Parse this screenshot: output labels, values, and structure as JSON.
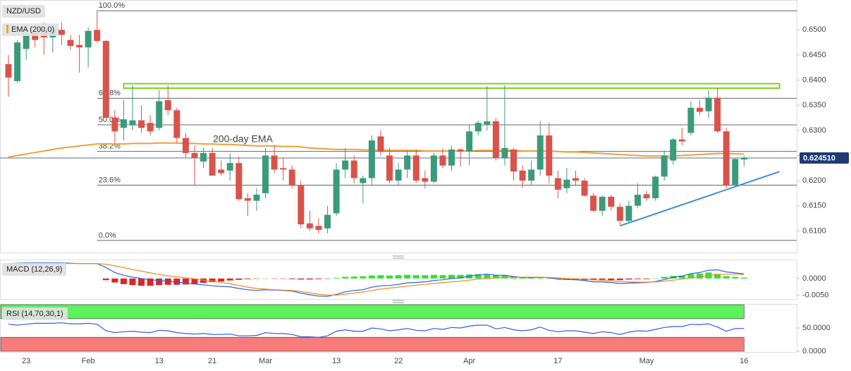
{
  "chart_data": [
    {
      "type": "candlestick",
      "title": "NZD/USD",
      "categories": [
        null,
        null,
        "23",
        null,
        null,
        null,
        null,
        null,
        null,
        "Feb",
        null,
        null,
        null,
        null,
        null,
        null,
        null,
        "13",
        null,
        null,
        null,
        null,
        null,
        "21",
        null,
        null,
        null,
        null,
        null,
        "Mar",
        null,
        null,
        null,
        null,
        null,
        null,
        null,
        "13",
        null,
        null,
        null,
        null,
        null,
        null,
        "22",
        null,
        null,
        null,
        null,
        null,
        null,
        null,
        "Apr",
        null,
        null,
        null,
        null,
        null,
        null,
        null,
        null,
        null,
        "17",
        null,
        null,
        null,
        null,
        null,
        null,
        null,
        null,
        null,
        "May",
        null,
        null,
        null,
        null,
        null,
        null,
        null,
        null,
        null,
        null,
        "16"
      ],
      "open": [
        0.6432,
        0.6398,
        0.6462,
        0.6495,
        0.6495,
        0.6485,
        0.65,
        0.648,
        0.647,
        0.6465,
        0.65,
        0.6478,
        0.6325,
        0.6305,
        0.631,
        0.632,
        0.6315,
        0.6305,
        0.636,
        0.634,
        0.6285,
        0.6255,
        0.6238,
        0.6255,
        0.6222,
        0.622,
        0.6235,
        0.6165,
        0.616,
        0.6175,
        0.625,
        0.6225,
        0.6222,
        0.619,
        0.6115,
        0.611,
        0.6105,
        0.6135,
        0.6222,
        0.624,
        0.6195,
        0.6205,
        0.6288,
        0.625,
        0.62,
        0.6222,
        0.625,
        0.6205,
        0.6198,
        0.625,
        0.623,
        0.6262,
        0.6258,
        0.6298,
        0.6312,
        0.6318,
        0.6245,
        0.6262,
        0.622,
        0.62,
        0.6222,
        0.629,
        0.6205,
        0.6185,
        0.6205,
        0.62,
        0.617,
        0.614,
        0.6168,
        0.6148,
        0.612,
        0.615,
        0.6173,
        0.6165,
        0.6208,
        0.624,
        0.6282,
        0.6295,
        0.6345,
        0.6338,
        0.6365,
        0.6298,
        0.6192,
        0.6242
      ],
      "high": [
        0.645,
        0.648,
        0.651,
        0.6505,
        0.6515,
        0.6505,
        0.6515,
        0.649,
        0.649,
        0.6505,
        0.6538,
        0.648,
        0.634,
        0.636,
        0.639,
        0.635,
        0.633,
        0.638,
        0.639,
        0.6345,
        0.6295,
        0.627,
        0.6265,
        0.6265,
        0.624,
        0.6255,
        0.6248,
        0.6175,
        0.6185,
        0.6265,
        0.627,
        0.6245,
        0.623,
        0.62,
        0.614,
        0.6125,
        0.615,
        0.6235,
        0.6265,
        0.625,
        0.621,
        0.629,
        0.63,
        0.6265,
        0.6235,
        0.626,
        0.6262,
        0.622,
        0.6255,
        0.6265,
        0.627,
        0.6265,
        0.631,
        0.632,
        0.6388,
        0.6325,
        0.639,
        0.6265,
        0.623,
        0.624,
        0.6318,
        0.6315,
        0.622,
        0.6225,
        0.622,
        0.6205,
        0.6175,
        0.617,
        0.6172,
        0.6155,
        0.616,
        0.6195,
        0.618,
        0.621,
        0.626,
        0.6285,
        0.6305,
        0.6358,
        0.636,
        0.638,
        0.6385,
        0.6305,
        0.6245,
        0.625
      ],
      "low": [
        0.6367,
        0.6395,
        0.644,
        0.6465,
        0.645,
        0.6455,
        0.647,
        0.646,
        0.6415,
        0.6425,
        0.6475,
        0.6325,
        0.6275,
        0.628,
        0.63,
        0.6295,
        0.629,
        0.63,
        0.633,
        0.6275,
        0.6245,
        0.619,
        0.6225,
        0.621,
        0.621,
        0.62,
        0.616,
        0.613,
        0.614,
        0.6165,
        0.6215,
        0.62,
        0.6185,
        0.6105,
        0.61,
        0.6095,
        0.6095,
        0.613,
        0.6205,
        0.6195,
        0.6155,
        0.619,
        0.625,
        0.6195,
        0.619,
        0.6205,
        0.6195,
        0.6185,
        0.6195,
        0.6225,
        0.622,
        0.6228,
        0.623,
        0.629,
        0.63,
        0.624,
        0.623,
        0.62,
        0.6185,
        0.619,
        0.621,
        0.6195,
        0.6165,
        0.6175,
        0.619,
        0.6168,
        0.6138,
        0.613,
        0.614,
        0.6112,
        0.6115,
        0.6145,
        0.616,
        0.616,
        0.62,
        0.6232,
        0.627,
        0.629,
        0.633,
        0.6325,
        0.6295,
        0.6185,
        0.6188,
        0.6228
      ],
      "close": [
        0.6405,
        0.6475,
        0.649,
        0.648,
        0.6485,
        0.65,
        0.649,
        0.6468,
        0.6465,
        0.6498,
        0.6478,
        0.6325,
        0.6298,
        0.6322,
        0.632,
        0.6305,
        0.6298,
        0.6358,
        0.634,
        0.6285,
        0.6255,
        0.6245,
        0.6255,
        0.621,
        0.6215,
        0.6235,
        0.6163,
        0.616,
        0.6172,
        0.625,
        0.6222,
        0.6222,
        0.619,
        0.6113,
        0.6105,
        0.6102,
        0.6132,
        0.6222,
        0.624,
        0.6205,
        0.6205,
        0.628,
        0.6258,
        0.62,
        0.6222,
        0.625,
        0.62,
        0.6198,
        0.625,
        0.623,
        0.6262,
        0.6258,
        0.6298,
        0.6315,
        0.6318,
        0.6245,
        0.6265,
        0.6218,
        0.62,
        0.6222,
        0.629,
        0.621,
        0.6182,
        0.6202,
        0.62,
        0.617,
        0.614,
        0.6168,
        0.6148,
        0.612,
        0.615,
        0.6172,
        0.6165,
        0.6208,
        0.625,
        0.6282,
        0.6278,
        0.6345,
        0.6337,
        0.6365,
        0.6298,
        0.619,
        0.6243,
        0.6245
      ],
      "up_color": "#3a9b7c",
      "down_color": "#d9534a",
      "ema": {
        "name": "EMA (200,0)",
        "color": "#eea03a",
        "values": [
          0.6247,
          0.625,
          0.6253,
          0.6256,
          0.6259,
          0.6262,
          0.6265,
          0.6267,
          0.6269,
          0.6271,
          0.6273,
          0.6273,
          0.6273,
          0.6273,
          0.6274,
          0.6274,
          0.6274,
          0.6275,
          0.6275,
          0.6275,
          0.6274,
          0.6274,
          0.6273,
          0.6273,
          0.6272,
          0.6272,
          0.6271,
          0.627,
          0.6269,
          0.6269,
          0.6269,
          0.6268,
          0.6268,
          0.6267,
          0.6265,
          0.6264,
          0.6263,
          0.6262,
          0.6262,
          0.6262,
          0.6261,
          0.6261,
          0.6261,
          0.626,
          0.626,
          0.626,
          0.626,
          0.6259,
          0.6259,
          0.6259,
          0.6259,
          0.6259,
          0.6259,
          0.626,
          0.626,
          0.626,
          0.626,
          0.626,
          0.6259,
          0.6259,
          0.6259,
          0.6259,
          0.6258,
          0.6257,
          0.6257,
          0.6256,
          0.6255,
          0.6254,
          0.6253,
          0.6252,
          0.6251,
          0.625,
          0.6249,
          0.6249,
          0.6249,
          0.6249,
          0.625,
          0.6251,
          0.6252,
          0.6253,
          0.6254,
          0.6254,
          0.6253,
          0.6253
        ]
      },
      "annotation": "200-day EMA",
      "fib_start": 10,
      "fib_levels": [
        {
          "label": "100.0%",
          "value": 0.6538
        },
        {
          "label": "61.8%",
          "value": 0.6364
        },
        {
          "label": "50.0%",
          "value": 0.6311
        },
        {
          "label": "38.2%",
          "value": 0.6258
        },
        {
          "label": "23.6%",
          "value": 0.6191
        },
        {
          "label": "0.0%",
          "value": 0.6081
        }
      ],
      "resistance_zone": {
        "x": [
          13,
          87
        ],
        "y": [
          0.6384,
          0.6393
        ],
        "color": "#7ed321"
      },
      "trendline": {
        "x": [
          69,
          87
        ],
        "y": [
          0.611,
          0.6218
        ],
        "color": "#3a8fdc"
      },
      "last_price": {
        "value": 0.62451,
        "label": "0.624510",
        "color": "#1f3b73"
      },
      "ylim": [
        0.6057,
        0.6558
      ],
      "yticks": [
        {
          "value": 0.61,
          "label": "0.6100"
        },
        {
          "value": 0.615,
          "label": "0.6150"
        },
        {
          "value": 0.62,
          "label": "0.6200"
        },
        {
          "value": 0.625,
          "label": "0.6250"
        },
        {
          "value": 0.63,
          "label": "0.6300"
        },
        {
          "value": 0.635,
          "label": "0.6350"
        },
        {
          "value": 0.64,
          "label": "0.6400"
        },
        {
          "value": 0.645,
          "label": "0.6450"
        },
        {
          "value": 0.65,
          "label": "0.6500"
        }
      ]
    },
    {
      "type": "macd",
      "title": "MACD (12,26,9)",
      "histogram": [
        null,
        null,
        null,
        null,
        null,
        null,
        null,
        null,
        null,
        null,
        null,
        -0.0005,
        -0.0012,
        -0.0017,
        -0.002,
        -0.0022,
        -0.0022,
        -0.002,
        -0.0019,
        -0.0019,
        -0.0018,
        -0.0016,
        -0.0013,
        -0.0011,
        -0.0009,
        -0.0006,
        -0.0004,
        -0.0002,
        -0.0001,
        0,
        -0.0001,
        -0.0001,
        -0.0002,
        -0.0003,
        -0.0003,
        -0.0002,
        -0.0001,
        0.0002,
        0.0005,
        0.0006,
        0.0007,
        0.0009,
        0.001,
        0.0009,
        0.001,
        0.0011,
        0.001,
        0.001,
        0.0011,
        0.001,
        0.0011,
        0.0011,
        0.0012,
        0.0013,
        0.0013,
        0.001,
        0.001,
        0.0006,
        0.0004,
        0.0003,
        0.0004,
        0.0001,
        -0.0002,
        -0.0003,
        -0.0004,
        -0.0005,
        -0.0005,
        -0.0004,
        -0.0005,
        -0.0005,
        -0.0003,
        -0.0002,
        -0.0002,
        0,
        0.0005,
        0.0008,
        0.0009,
        0.0014,
        0.0015,
        0.0018,
        0.0014,
        0.0007,
        0.0005,
        0.0003
      ],
      "up_color": "#33e033",
      "down_color": "#e02424",
      "series": [
        {
          "color": "#2f5fe0",
          "values": [
            0.0045,
            0.0046,
            0.0047,
            0.0047,
            0.0047,
            0.0047,
            0.0047,
            0.0046,
            0.0045,
            0.0045,
            0.0045,
            0.0033,
            0.0018,
            0.001,
            0.0004,
            0,
            -0.0004,
            -0.0006,
            -0.0008,
            -0.0011,
            -0.0014,
            -0.0017,
            -0.0019,
            -0.0022,
            -0.0024,
            -0.0025,
            -0.003,
            -0.0034,
            -0.0036,
            -0.0034,
            -0.0035,
            -0.0036,
            -0.0038,
            -0.0044,
            -0.0049,
            -0.0053,
            -0.0054,
            -0.0048,
            -0.004,
            -0.0036,
            -0.0034,
            -0.0026,
            -0.0022,
            -0.0021,
            -0.0018,
            -0.0013,
            -0.0012,
            -0.001,
            -0.0006,
            -0.0004,
            0,
            0.0002,
            0.0007,
            0.0011,
            0.0013,
            0.001,
            0.001,
            0.0006,
            0.0003,
            0.0002,
            0.0004,
            0.0002,
            -0.0002,
            -0.0003,
            -0.0004,
            -0.0006,
            -0.001,
            -0.001,
            -0.0012,
            -0.0015,
            -0.0014,
            -0.0013,
            -0.0012,
            -0.0009,
            -0.0003,
            0.0003,
            0.0007,
            0.0015,
            0.0018,
            0.0025,
            0.0026,
            0.002,
            0.0017,
            0.0014
          ]
        },
        {
          "color": "#f08a24",
          "values": [
            0.004,
            0.0041,
            0.0042,
            0.0043,
            0.0044,
            0.0044,
            0.0045,
            0.0045,
            0.0045,
            0.0045,
            0.0045,
            0.0043,
            0.0038,
            0.0033,
            0.0027,
            0.0022,
            0.0017,
            0.0012,
            0.0008,
            0.0005,
            0.0002,
            -0.0001,
            -0.0005,
            -0.0008,
            -0.0012,
            -0.0016,
            -0.0021,
            -0.0026,
            -0.003,
            -0.0032,
            -0.0034,
            -0.0035,
            -0.0036,
            -0.0039,
            -0.0043,
            -0.0048,
            -0.005,
            -0.005,
            -0.0047,
            -0.0044,
            -0.0041,
            -0.0036,
            -0.0032,
            -0.0029,
            -0.0026,
            -0.0023,
            -0.002,
            -0.0018,
            -0.0015,
            -0.0012,
            -0.001,
            -0.0008,
            -0.0005,
            -0.0002,
            0,
            0.0002,
            0.0003,
            0.0004,
            0.0004,
            0.0004,
            0.0004,
            0.0003,
            0.0002,
            0,
            -0.0001,
            -0.0002,
            -0.0004,
            -0.0006,
            -0.0007,
            -0.0009,
            -0.001,
            -0.0011,
            -0.0011,
            -0.001,
            -0.0008,
            -0.0005,
            -0.0002,
            0.0002,
            0.0005,
            0.0009,
            0.0012,
            0.0013,
            0.0013,
            0.0012
          ]
        }
      ],
      "ylim": [
        -0.0062,
        0.0055
      ],
      "yticks": [
        {
          "value": -0.005,
          "label": "-0.0050"
        },
        {
          "value": 0,
          "label": "0.0000"
        }
      ]
    },
    {
      "type": "line",
      "title": "RSI (14,70,30,1)",
      "color": "#2f5fe0",
      "values": [
        58,
        56,
        58,
        60,
        60,
        60,
        61,
        59,
        59,
        60,
        58,
        44,
        40,
        42,
        43,
        41,
        40,
        45,
        44,
        40,
        38,
        37,
        38,
        36,
        36,
        37,
        33,
        33,
        34,
        40,
        38,
        38,
        36,
        31,
        31,
        30,
        33,
        43,
        46,
        43,
        43,
        50,
        48,
        44,
        46,
        49,
        45,
        44,
        49,
        47,
        51,
        50,
        54,
        56,
        56,
        48,
        51,
        46,
        44,
        46,
        52,
        45,
        42,
        44,
        44,
        41,
        38,
        42,
        40,
        36,
        41,
        44,
        43,
        47,
        51,
        53,
        53,
        58,
        57,
        59,
        52,
        43,
        49,
        49
      ],
      "bands": [
        {
          "from": 70,
          "to": 100,
          "color": "#5cf25c"
        },
        {
          "from": 0,
          "to": 30,
          "color": "#f77b7b"
        }
      ],
      "ylim": [
        0,
        100
      ],
      "yticks": [
        {
          "value": 0,
          "label": "0.0000"
        },
        {
          "value": 50,
          "label": "50.0000"
        }
      ]
    }
  ]
}
